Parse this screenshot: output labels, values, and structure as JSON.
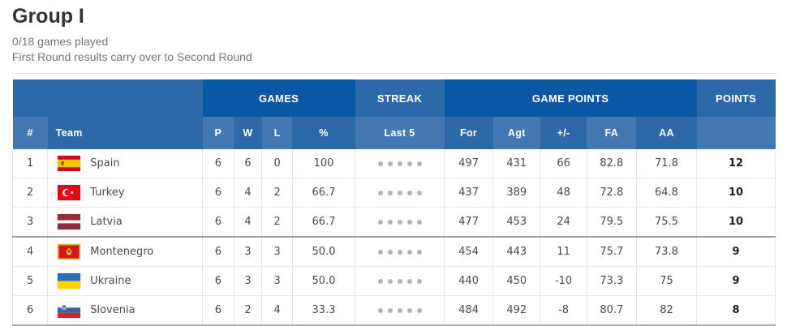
{
  "page": {
    "title": "Group I",
    "games_played": "0/18 games played",
    "note": "First Round results carry over to Second Round"
  },
  "table": {
    "groups": {
      "games": "GAMES",
      "streak": "STREAK",
      "game_points": "GAME POINTS",
      "points": "POINTS"
    },
    "columns": [
      "#",
      "Team",
      "P",
      "W",
      "L",
      "%",
      "Last 5",
      "For",
      "Agt",
      "+/-",
      "FA",
      "AA",
      ""
    ],
    "rows": [
      {
        "rank": "1",
        "team": "Spain",
        "flag": "flag-spain",
        "played": "6",
        "wins": "6",
        "losses": "0",
        "pct": "100",
        "streak_dots": 5,
        "points_for": "497",
        "points_against": "431",
        "diff": "66",
        "fa": "82.8",
        "aa": "71.8",
        "points": "12"
      },
      {
        "rank": "2",
        "team": "Turkey",
        "flag": "flag-turkey",
        "played": "6",
        "wins": "4",
        "losses": "2",
        "pct": "66.7",
        "streak_dots": 5,
        "points_for": "437",
        "points_against": "389",
        "diff": "48",
        "fa": "72.8",
        "aa": "64.8",
        "points": "10"
      },
      {
        "rank": "3",
        "team": "Latvia",
        "flag": "flag-latvia",
        "played": "6",
        "wins": "4",
        "losses": "2",
        "pct": "66.7",
        "streak_dots": 5,
        "points_for": "477",
        "points_against": "453",
        "diff": "24",
        "fa": "79.5",
        "aa": "75.5",
        "points": "10"
      },
      {
        "rank": "4",
        "team": "Montenegro",
        "flag": "flag-montenegro",
        "played": "6",
        "wins": "3",
        "losses": "3",
        "pct": "50.0",
        "streak_dots": 5,
        "points_for": "454",
        "points_against": "443",
        "diff": "11",
        "fa": "75.7",
        "aa": "73.8",
        "points": "9"
      },
      {
        "rank": "5",
        "team": "Ukraine",
        "flag": "flag-ukraine",
        "played": "6",
        "wins": "3",
        "losses": "3",
        "pct": "50.0",
        "streak_dots": 5,
        "points_for": "440",
        "points_against": "450",
        "diff": "-10",
        "fa": "73.3",
        "aa": "75",
        "points": "9"
      },
      {
        "rank": "6",
        "team": "Slovenia",
        "flag": "flag-slovenia",
        "played": "6",
        "wins": "2",
        "losses": "4",
        "pct": "33.3",
        "streak_dots": 5,
        "points_for": "484",
        "points_against": "492",
        "diff": "-8",
        "fa": "80.7",
        "aa": "82",
        "points": "8"
      }
    ],
    "qualification_cutoff_after_rank": 3,
    "colors": {
      "header_dark_blue": "#0a57a3",
      "header_medium_blue": "#2d69a8",
      "header_light_blue": "#4478b2",
      "streak_dot_gray": "#b3b3b3"
    }
  }
}
